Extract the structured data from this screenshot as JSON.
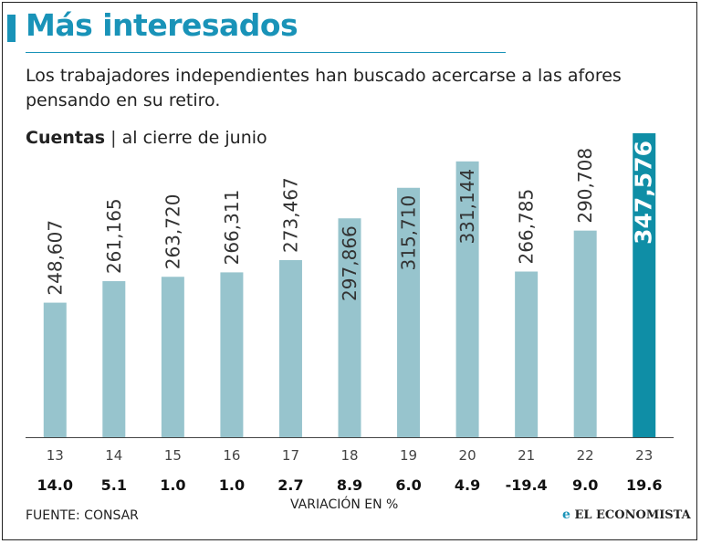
{
  "header": {
    "title": "Más interesados",
    "subtitle": "Los trabajadores independientes han buscado acercarse a las afores pensando en su retiro.",
    "metric_label": "Cuentas",
    "metric_separator": "|",
    "metric_period": "al cierre de junio"
  },
  "footer": {
    "source": "FUENTE: CONSAR",
    "variation_label": "VARIACIÓN EN %",
    "brand": "EL ECONOMISTA",
    "brand_mark": "e"
  },
  "colors": {
    "accent": "#1993b8",
    "bar": "#97c4cd",
    "bar_highlight": "#0f8ea6"
  },
  "chart_data": {
    "type": "bar",
    "categories": [
      "13",
      "14",
      "15",
      "16",
      "17",
      "18",
      "19",
      "20",
      "21",
      "22",
      "23"
    ],
    "values": [
      248607,
      261165,
      263720,
      266311,
      273467,
      297866,
      315710,
      331144,
      266785,
      290708,
      347576
    ],
    "value_labels": [
      "248,607",
      "261,165",
      "263,720",
      "266,311",
      "273,467",
      "297,866",
      "315,710",
      "331,144",
      "266,785",
      "290,708",
      "347,576"
    ],
    "variation_pct": [
      "14.0",
      "5.1",
      "1.0",
      "1.0",
      "2.7",
      "8.9",
      "6.0",
      "4.9",
      "-19.4",
      "9.0",
      "19.6"
    ],
    "highlight_index": 10,
    "title": "Cuentas al cierre de junio",
    "xlabel": "",
    "ylabel": "",
    "ylim": [
      170000,
      347576
    ]
  }
}
